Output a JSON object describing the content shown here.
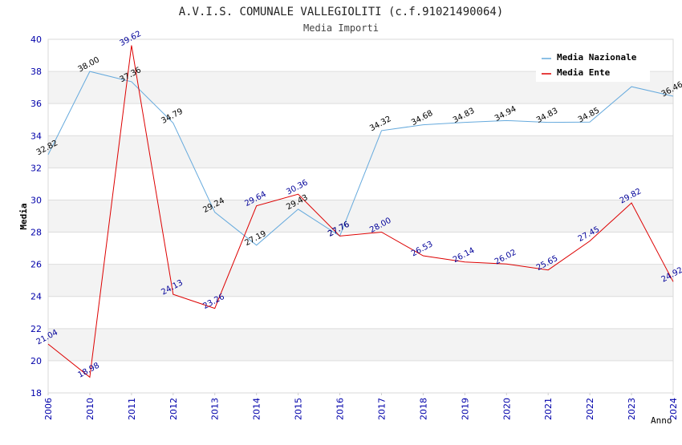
{
  "chart_data": {
    "type": "line",
    "title": "A.V.I.S. COMUNALE VALLEGIOLITI (c.f.91021490064)",
    "subtitle": "Media Importi",
    "xlabel": "Anno",
    "ylabel": "Media",
    "ylim": [
      18,
      40
    ],
    "yticks": [
      "18",
      "20",
      "22",
      "24",
      "26",
      "28",
      "30",
      "32",
      "34",
      "36",
      "38",
      "40"
    ],
    "categories": [
      "2006",
      "2010",
      "2011",
      "2012",
      "2013",
      "2014",
      "2015",
      "2016",
      "2017",
      "2018",
      "2019",
      "2020",
      "2021",
      "2022",
      "2023",
      "2024"
    ],
    "grid": true,
    "legend_position": "top-right",
    "series": [
      {
        "name": "Media Nazionale",
        "color": "#66aadd",
        "label_color": "#000000",
        "values": [
          32.82,
          38.0,
          37.36,
          34.79,
          29.24,
          27.19,
          29.43,
          27.76,
          34.32,
          34.68,
          34.83,
          34.94,
          34.83,
          34.85,
          37.05,
          36.46
        ],
        "labels": [
          "32.82",
          "38.00",
          "37.36",
          "34.79",
          "29.24",
          "27.19",
          "29.43",
          "27.76",
          "34.32",
          "34.68",
          "34.83",
          "34.94",
          "34.83",
          "34.85",
          "",
          "36.46"
        ]
      },
      {
        "name": "Media Ente",
        "color": "#dd0000",
        "label_color": "#000099",
        "values": [
          21.04,
          18.98,
          39.62,
          24.13,
          23.26,
          29.64,
          30.36,
          27.76,
          28.0,
          26.53,
          26.14,
          26.02,
          25.65,
          27.45,
          29.82,
          24.92
        ],
        "labels": [
          "21.04",
          "18.98",
          "39.62",
          "24.13",
          "23.26",
          "29.64",
          "30.36",
          "27.76",
          "28.00",
          "26.53",
          "26.14",
          "26.02",
          "25.65",
          "27.45",
          "29.82",
          "24.92"
        ]
      }
    ]
  }
}
